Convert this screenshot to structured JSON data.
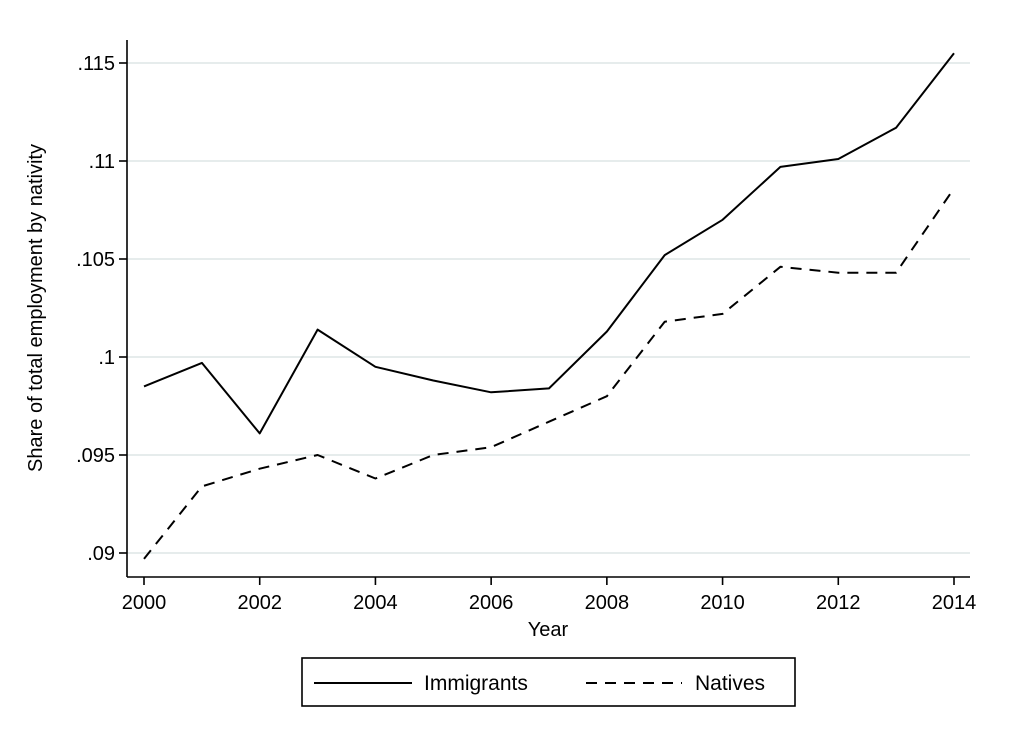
{
  "chart_data": {
    "type": "line",
    "title": "",
    "xlabel": "Year",
    "ylabel": "Share of total employment by nativity",
    "x": [
      2000,
      2001,
      2002,
      2003,
      2004,
      2005,
      2006,
      2007,
      2008,
      2009,
      2010,
      2011,
      2012,
      2013,
      2014
    ],
    "xlim": [
      2000,
      2014
    ],
    "ylim": [
      0.09,
      0.115
    ],
    "x_ticks": [
      2000,
      2002,
      2004,
      2006,
      2008,
      2010,
      2012,
      2014
    ],
    "x_tick_labels": [
      "2000",
      "2002",
      "2004",
      "2006",
      "2008",
      "2010",
      "2012",
      "2014"
    ],
    "y_ticks": [
      0.09,
      0.095,
      0.1,
      0.105,
      0.11,
      0.115
    ],
    "y_tick_labels": [
      ".09",
      ".095",
      ".1",
      ".105",
      ".11",
      ".115"
    ],
    "grid": true,
    "legend_position": "bottom",
    "series": [
      {
        "name": "Immigrants",
        "style": "solid",
        "color": "#000000",
        "values": [
          0.0985,
          0.0997,
          0.0961,
          0.1014,
          0.0995,
          0.0988,
          0.0982,
          0.0984,
          0.1013,
          0.1052,
          0.107,
          0.1097,
          0.1101,
          0.1117,
          0.1155
        ]
      },
      {
        "name": "Natives",
        "style": "dashed",
        "color": "#000000",
        "values": [
          0.0897,
          0.0934,
          0.0943,
          0.095,
          0.0938,
          0.095,
          0.0954,
          0.0967,
          0.098,
          0.1018,
          0.1022,
          0.1046,
          0.1043,
          0.1043,
          0.1086
        ]
      }
    ],
    "grid_color": "#e6ecec"
  }
}
